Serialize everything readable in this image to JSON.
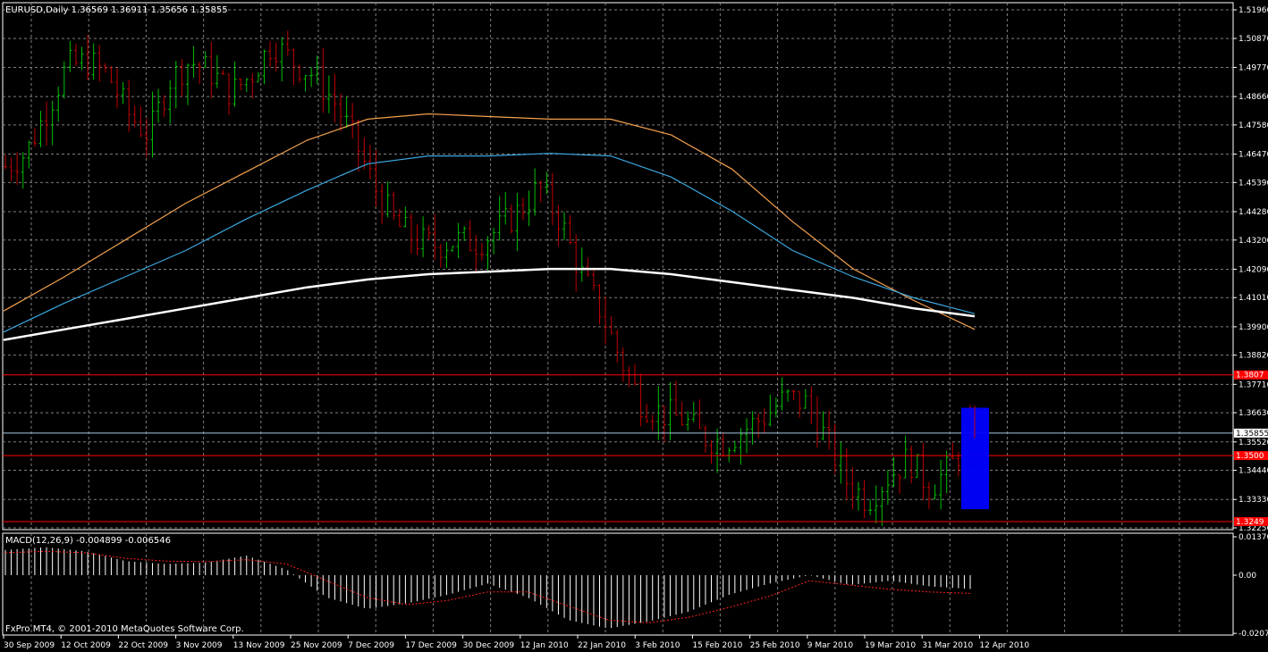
{
  "header": {
    "main_title": "EURUSD,Daily  1.36569 1.36911 1.35656 1.35855",
    "macd_title": "MACD(12,26,9) -0.004899 -0.006546",
    "copyright": "FxPro MT4, © 2001-2010 MetaQuotes Software Corp."
  },
  "colors": {
    "background": "#000000",
    "grid": "#7f7f7f",
    "bull": "#00c000",
    "bear": "#c00000",
    "ma_orange": "#f3a14e",
    "ma_blue": "#3ba7e0",
    "ma_white": "#ffffff",
    "hline_red": "#ff0000",
    "bid_line": "#a8c8e0",
    "highlight_box": "#0000ff",
    "macd_signal": "#ff2020"
  },
  "chart_data": [
    {
      "type": "candlestick",
      "title": "EURUSD,Daily",
      "ohlc_last": {
        "open": 1.36569,
        "high": 1.36911,
        "low": 1.35656,
        "close": 1.35855
      },
      "ylim": [
        1.3225,
        1.5196
      ],
      "y_ticks": [
        "1.51960",
        "1.50870",
        "1.49770",
        "1.48660",
        "1.47580",
        "1.46470",
        "1.45390",
        "1.44280",
        "1.43200",
        "1.42090",
        "1.41010",
        "1.39900",
        "1.38820",
        "1.37710",
        "1.36630",
        "1.35520",
        "1.34440",
        "1.33330",
        "1.32250"
      ],
      "x_labels": [
        "30 Sep 2009",
        "12 Oct 2009",
        "22 Oct 2009",
        "3 Nov 2009",
        "13 Nov 2009",
        "25 Nov 2009",
        "7 Dec 2009",
        "17 Dec 2009",
        "30 Dec 2009",
        "12 Jan 2010",
        "22 Jan 2010",
        "3 Feb 2010",
        "15 Feb 2010",
        "25 Feb 2010",
        "9 Mar 2010",
        "19 Mar 2010",
        "31 Mar 2010",
        "12 Apr 2010"
      ],
      "grid": true,
      "moving_averages": [
        {
          "color": "orange",
          "values": [
            1.405,
            1.418,
            1.432,
            1.446,
            1.458,
            1.47,
            1.478,
            1.48,
            1.479,
            1.478,
            1.478,
            1.472,
            1.459,
            1.439,
            1.421,
            1.409,
            1.398
          ]
        },
        {
          "color": "blue",
          "values": [
            1.397,
            1.408,
            1.418,
            1.428,
            1.44,
            1.451,
            1.461,
            1.464,
            1.464,
            1.465,
            1.464,
            1.456,
            1.443,
            1.428,
            1.418,
            1.41,
            1.404
          ]
        },
        {
          "color": "white",
          "values": [
            1.394,
            1.398,
            1.402,
            1.406,
            1.41,
            1.414,
            1.417,
            1.419,
            1.42,
            1.421,
            1.421,
            1.419,
            1.416,
            1.413,
            1.41,
            1.406,
            1.403
          ]
        }
      ],
      "horizontal_lines": [
        {
          "price_label": "1.3807",
          "color": "red"
        },
        {
          "price_label": "1.35855",
          "color": "bid"
        },
        {
          "price_label": "1.3500",
          "color": "red"
        },
        {
          "price_label": "1.3249",
          "color": "red"
        }
      ],
      "price_path": [
        1.46,
        1.465,
        1.481,
        1.498,
        1.5,
        1.495,
        1.48,
        1.472,
        1.493,
        1.5,
        1.496,
        1.488,
        1.495,
        1.507,
        1.5,
        1.495,
        1.485,
        1.47,
        1.452,
        1.438,
        1.432,
        1.43,
        1.432,
        1.431,
        1.436,
        1.443,
        1.452,
        1.44,
        1.42,
        1.405,
        1.386,
        1.37,
        1.366,
        1.364,
        1.357,
        1.355,
        1.36,
        1.365,
        1.372,
        1.37,
        1.356,
        1.34,
        1.333,
        1.342,
        1.349,
        1.338,
        1.345,
        1.358
      ]
    },
    {
      "type": "bar",
      "title": "MACD(12,26,9)",
      "macd_value": -0.004899,
      "signal_value": -0.006546,
      "ylim": [
        -0.0207,
        0.0137
      ],
      "y_ticks": [
        "0.01370",
        "0.00",
        "-0.02074"
      ],
      "macd_path": [
        0.009,
        0.01,
        0.0085,
        0.005,
        0.004,
        0.0045,
        0.007,
        0.002,
        -0.008,
        -0.012,
        -0.01,
        -0.007,
        -0.003,
        -0.008,
        -0.016,
        -0.019,
        -0.0165,
        -0.013,
        -0.007,
        -0.003,
        0.0,
        -0.0035,
        -0.002,
        -0.004,
        -0.0049
      ],
      "signal_path": [
        0.008,
        0.0085,
        0.008,
        0.006,
        0.005,
        0.0048,
        0.0055,
        0.004,
        -0.002,
        -0.008,
        -0.0105,
        -0.009,
        -0.006,
        -0.006,
        -0.011,
        -0.016,
        -0.017,
        -0.015,
        -0.0115,
        -0.0075,
        -0.002,
        -0.0035,
        -0.005,
        -0.006,
        -0.0065
      ]
    }
  ]
}
